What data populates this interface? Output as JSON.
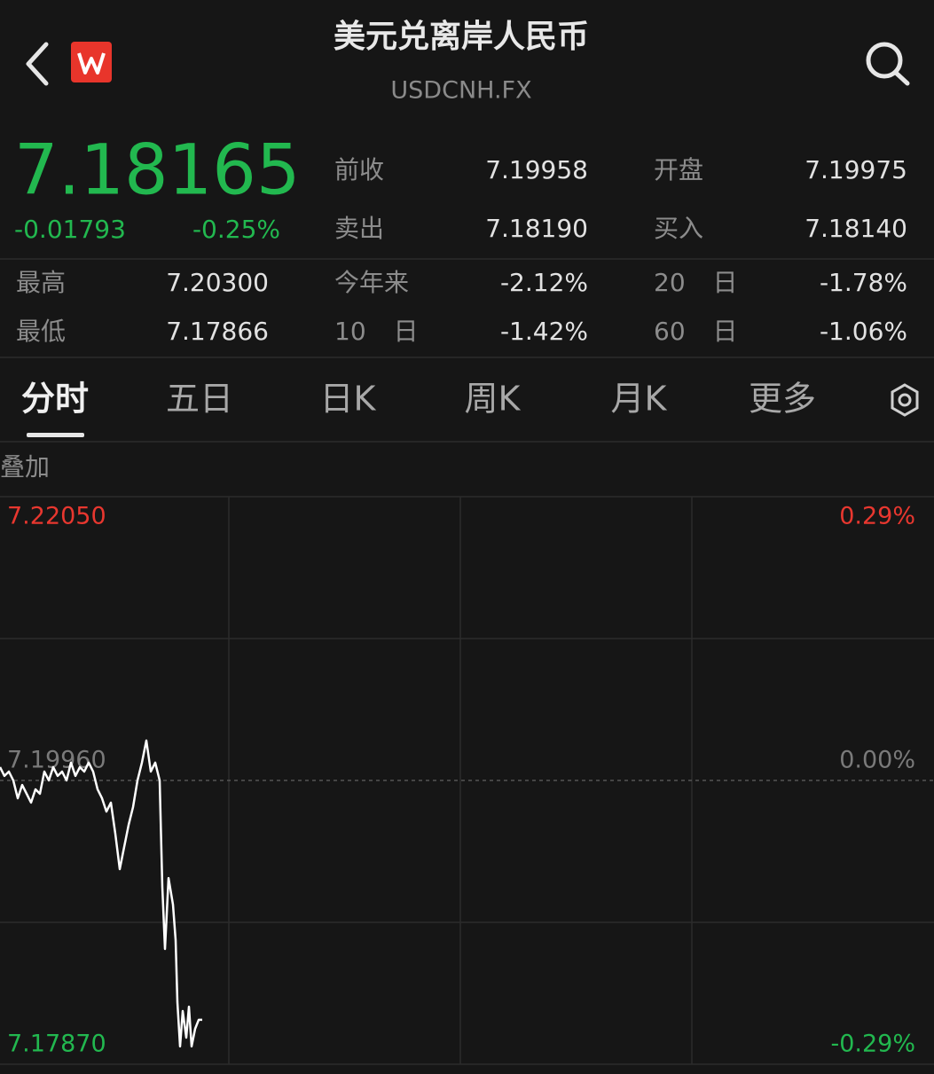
{
  "header": {
    "title": "美元兑离岸人民币",
    "subtitle": "USDCNH.FX"
  },
  "quote": {
    "price": "7.18165",
    "change": "-0.01793",
    "change_percent": "-0.25%"
  },
  "stats_top": [
    [
      "前收",
      "7.19958",
      "开盘",
      "7.19975"
    ],
    [
      "卖出",
      "7.18190",
      "买入",
      "7.18140"
    ]
  ],
  "stats_bottom": [
    [
      "最高",
      "7.20300",
      "今年来",
      "-2.12%",
      "20 日",
      "-1.78%"
    ],
    [
      "最低",
      "7.17866",
      "10 日",
      "-1.42%",
      "60 日",
      "-1.06%"
    ]
  ],
  "tabs": [
    "分时",
    "五日",
    "日K",
    "周K",
    "月K",
    "更多"
  ],
  "overlay_label": "叠加",
  "chart_data": {
    "type": "line",
    "color": "#ffffff",
    "x": [
      0,
      5,
      10,
      15,
      20,
      25,
      30,
      35,
      40,
      45,
      50,
      55,
      60,
      65,
      70,
      75,
      80,
      85,
      90,
      95,
      100,
      105,
      110,
      115,
      120,
      125,
      130,
      135,
      140,
      145,
      150,
      155,
      160,
      165,
      170,
      175,
      180,
      183,
      186,
      190,
      195,
      198,
      200,
      203,
      206,
      210,
      213,
      216,
      220,
      224,
      228
    ],
    "values": [
      7.20058,
      7.19993,
      7.20025,
      7.1996,
      7.19829,
      7.19927,
      7.19862,
      7.19797,
      7.19895,
      7.19862,
      7.20025,
      7.1996,
      7.20058,
      7.19993,
      7.20025,
      7.1996,
      7.20091,
      7.19993,
      7.20058,
      7.20025,
      7.20091,
      7.20025,
      7.19895,
      7.19829,
      7.19731,
      7.19797,
      7.19568,
      7.19307,
      7.1947,
      7.19633,
      7.19764,
      7.1996,
      7.20091,
      7.20254,
      7.20025,
      7.20091,
      7.1996,
      7.19176,
      7.18719,
      7.19241,
      7.19046,
      7.18784,
      7.18327,
      7.18001,
      7.18262,
      7.18066,
      7.18294,
      7.18001,
      7.18131,
      7.18197,
      7.18197
    ],
    "xlim": [
      0,
      1053
    ],
    "ylim": [
      7.1787,
      7.2205
    ],
    "yticks": [
      {
        "value": 7.2205,
        "label": "7.22050"
      },
      {
        "value": 7.1996,
        "label": "7.19960"
      },
      {
        "value": 7.1787,
        "label": "7.17870"
      }
    ],
    "y2lim": [
      -0.29,
      0.29
    ],
    "y2ticks": [
      {
        "value": 0.29,
        "label": "0.29%"
      },
      {
        "value": 0,
        "label": "0.00%"
      },
      {
        "value": -0.29,
        "label": "-0.29%"
      }
    ]
  }
}
